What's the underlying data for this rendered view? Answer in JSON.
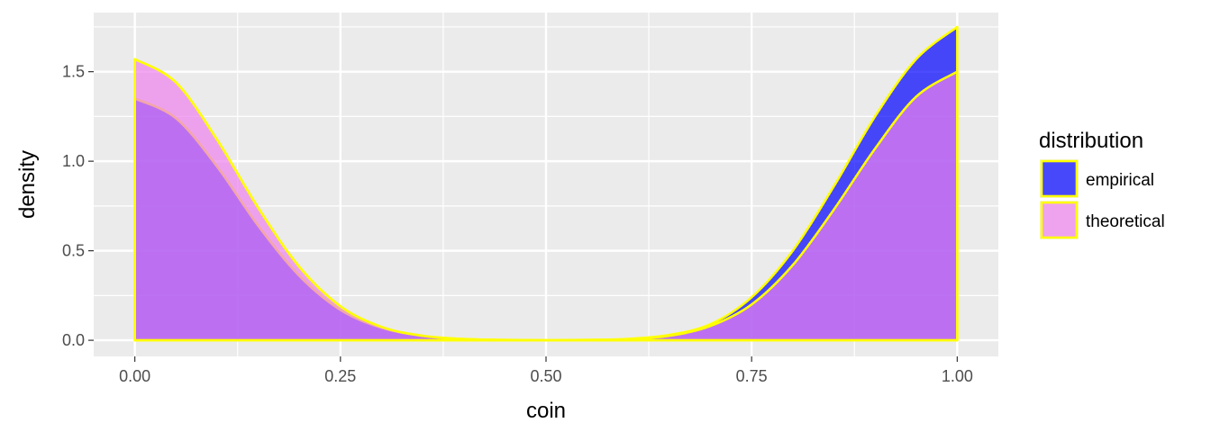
{
  "chart_data": {
    "type": "area",
    "title": "",
    "xlabel": "coin",
    "ylabel": "density",
    "xlim": [
      -0.05,
      1.05
    ],
    "ylim": [
      -0.09,
      1.83
    ],
    "x_ticks": [
      0.0,
      0.25,
      0.5,
      0.75,
      1.0
    ],
    "x_tick_labels": [
      "0.00",
      "0.25",
      "0.50",
      "0.75",
      "1.00"
    ],
    "y_ticks": [
      0.0,
      0.5,
      1.0,
      1.5
    ],
    "y_tick_labels": [
      "0.0",
      "0.5",
      "1.0",
      "1.5"
    ],
    "grid": true,
    "legend": {
      "title": "distribution",
      "placement": "right"
    },
    "series": [
      {
        "name": "empirical",
        "fill": "#0000FF",
        "alpha": 0.7,
        "outline": "#FFFF00",
        "x": [
          0,
          0.05,
          0.1,
          0.15,
          0.2,
          0.25,
          0.3,
          0.35,
          0.4,
          0.45,
          0.5,
          0.55,
          0.6,
          0.65,
          0.7,
          0.75,
          0.8,
          0.85,
          0.9,
          0.95,
          1.0
        ],
        "y": [
          1.35,
          1.24,
          0.97,
          0.64,
          0.36,
          0.17,
          0.07,
          0.025,
          0.007,
          0.002,
          0.0,
          0.002,
          0.008,
          0.03,
          0.09,
          0.24,
          0.5,
          0.86,
          1.25,
          1.57,
          1.75
        ]
      },
      {
        "name": "theoretical",
        "fill": "#EE82EE",
        "alpha": 0.7,
        "outline": "#FFFF00",
        "x": [
          0,
          0.05,
          0.1,
          0.15,
          0.2,
          0.25,
          0.3,
          0.35,
          0.4,
          0.45,
          0.5,
          0.55,
          0.6,
          0.65,
          0.7,
          0.75,
          0.8,
          0.85,
          0.9,
          0.95,
          1.0
        ],
        "y": [
          1.57,
          1.44,
          1.12,
          0.74,
          0.41,
          0.19,
          0.075,
          0.025,
          0.007,
          0.002,
          0.0,
          0.002,
          0.006,
          0.025,
          0.08,
          0.2,
          0.42,
          0.73,
          1.07,
          1.36,
          1.5
        ]
      }
    ]
  }
}
